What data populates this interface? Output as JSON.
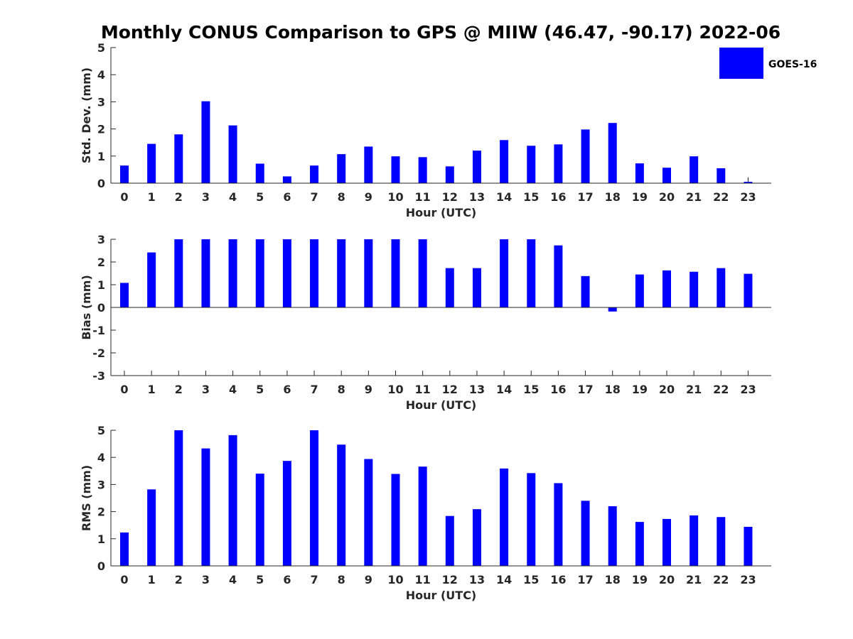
{
  "title": "Monthly CONUS Comparison to GPS @ MIIW (46.47, -90.17) 2022-06",
  "legend": {
    "label": "GOES-16",
    "color": "#0000ff"
  },
  "chart_data": [
    {
      "type": "bar",
      "xlabel": "Hour (UTC)",
      "ylabel": "Std. Dev. (mm)",
      "ylim": [
        0,
        5
      ],
      "yticks": [
        "0",
        "1",
        "2",
        "3",
        "4",
        "5"
      ],
      "categories": [
        "0",
        "1",
        "2",
        "3",
        "4",
        "5",
        "6",
        "7",
        "8",
        "9",
        "10",
        "11",
        "12",
        "13",
        "14",
        "15",
        "16",
        "17",
        "18",
        "19",
        "20",
        "21",
        "22",
        "23"
      ],
      "series": [
        {
          "name": "GOES-16",
          "color": "#0000ff",
          "values": [
            0.65,
            1.45,
            1.8,
            3.02,
            2.13,
            0.72,
            0.25,
            0.65,
            1.07,
            1.35,
            0.99,
            0.96,
            0.62,
            1.2,
            1.59,
            1.38,
            1.43,
            1.98,
            2.22,
            0.73,
            0.57,
            0.99,
            0.55,
            0.05
          ]
        }
      ],
      "grid": false
    },
    {
      "type": "bar",
      "xlabel": "Hour (UTC)",
      "ylabel": "Bias (mm)",
      "ylim": [
        -3,
        3
      ],
      "yticks": [
        "-3",
        "-2",
        "-1",
        "0",
        "1",
        "2",
        "3"
      ],
      "categories": [
        "0",
        "1",
        "2",
        "3",
        "4",
        "5",
        "6",
        "7",
        "8",
        "9",
        "10",
        "11",
        "12",
        "13",
        "14",
        "15",
        "16",
        "17",
        "18",
        "19",
        "20",
        "21",
        "22",
        "23"
      ],
      "series": [
        {
          "name": "GOES-16",
          "color": "#0000ff",
          "values": [
            1.08,
            2.42,
            3.0,
            3.0,
            3.0,
            3.0,
            3.0,
            3.0,
            3.0,
            3.0,
            3.0,
            3.0,
            1.73,
            1.73,
            3.0,
            3.0,
            2.73,
            1.38,
            -0.18,
            1.45,
            1.63,
            1.57,
            1.73,
            1.48
          ]
        }
      ],
      "grid": false
    },
    {
      "type": "bar",
      "xlabel": "Hour (UTC)",
      "ylabel": "RMS (mm)",
      "ylim": [
        0,
        5
      ],
      "yticks": [
        "0",
        "1",
        "2",
        "3",
        "4",
        "5"
      ],
      "categories": [
        "0",
        "1",
        "2",
        "3",
        "4",
        "5",
        "6",
        "7",
        "8",
        "9",
        "10",
        "11",
        "12",
        "13",
        "14",
        "15",
        "16",
        "17",
        "18",
        "19",
        "20",
        "21",
        "22",
        "23"
      ],
      "series": [
        {
          "name": "GOES-16",
          "color": "#0000ff",
          "values": [
            1.23,
            2.82,
            5.0,
            4.33,
            4.82,
            3.4,
            3.87,
            5.0,
            4.47,
            3.94,
            3.39,
            3.66,
            1.84,
            2.09,
            3.59,
            3.42,
            3.05,
            2.4,
            2.2,
            1.62,
            1.73,
            1.86,
            1.8,
            1.44
          ]
        }
      ],
      "grid": false
    }
  ]
}
